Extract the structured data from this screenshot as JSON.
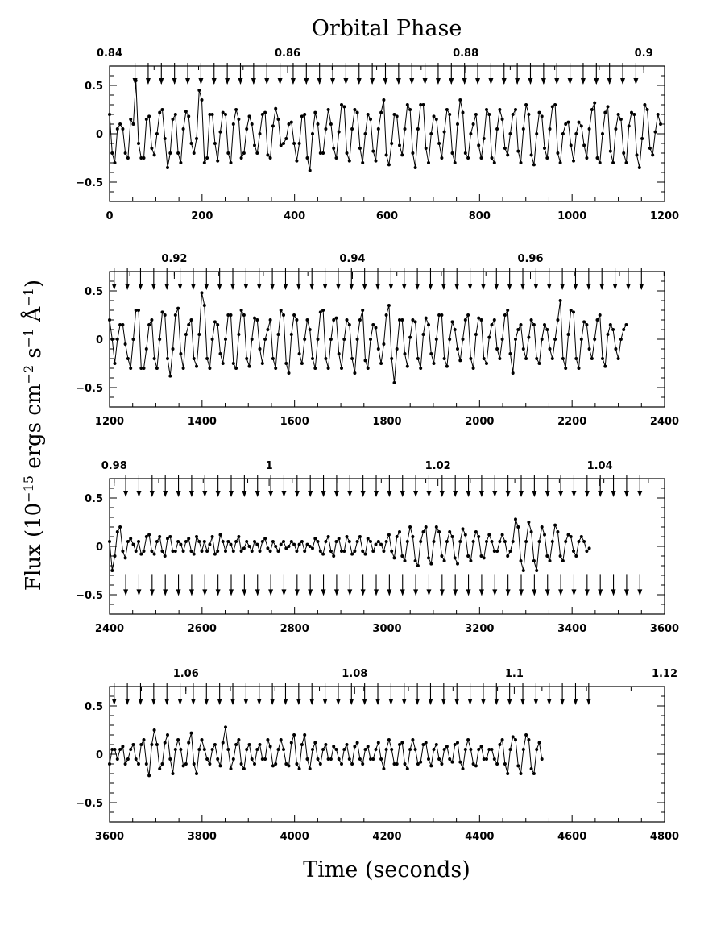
{
  "figure": {
    "title": "Orbital Phase",
    "xlabel": "Time (seconds)",
    "ylabel_parts": {
      "main": "Flux (10",
      "exp1": "−15",
      "mid1": " ergs cm",
      "exp2": "−2",
      "mid2": " s",
      "exp3": "−1",
      "mid3": " Å",
      "exp4": "−1",
      "end": ")"
    }
  },
  "chart_data": [
    {
      "type": "line",
      "panel": 1,
      "xlim": [
        0,
        1200
      ],
      "ylim": [
        -0.7,
        0.7
      ],
      "xticks": [
        0,
        200,
        400,
        600,
        800,
        1000,
        1200
      ],
      "yticks": [
        -0.5,
        0,
        0.5
      ],
      "ytick_labels": [
        "−0.5",
        "0",
        "0.5"
      ],
      "phase_ticks": [
        {
          "label": "0.84",
          "t": 0
        },
        {
          "label": "0.86",
          "t": 385
        },
        {
          "label": "0.88",
          "t": 770
        },
        {
          "label": "0.9",
          "t": 1155
        }
      ],
      "pulse_period": 28.5,
      "arrows_top": {
        "start": 55,
        "end": 1155,
        "y": 0.6
      },
      "arrows_bottom": null,
      "series": {
        "x_start": 0,
        "x_step": 5.7,
        "values": [
          0.2,
          -0.2,
          -0.3,
          0.05,
          0.1,
          0.05,
          -0.2,
          -0.25,
          0.15,
          0.1,
          0.55,
          -0.1,
          -0.25,
          -0.25,
          0.15,
          0.18,
          -0.15,
          -0.22,
          0.0,
          0.22,
          0.25,
          -0.05,
          -0.35,
          -0.2,
          0.15,
          0.2,
          -0.2,
          -0.3,
          0.05,
          0.23,
          0.18,
          -0.1,
          -0.2,
          -0.05,
          0.45,
          0.35,
          -0.3,
          -0.25,
          0.2,
          0.2,
          -0.1,
          -0.28,
          0.02,
          0.22,
          0.2,
          -0.2,
          -0.3,
          0.1,
          0.25,
          0.15,
          -0.25,
          -0.2,
          0.05,
          0.18,
          0.1,
          -0.12,
          -0.2,
          0.0,
          0.2,
          0.22,
          -0.22,
          -0.25,
          0.08,
          0.26,
          0.15,
          -0.12,
          -0.1,
          -0.05,
          0.1,
          0.12,
          -0.1,
          -0.28,
          -0.1,
          0.18,
          0.2,
          -0.25,
          -0.38,
          0.0,
          0.22,
          0.1,
          -0.2,
          -0.2,
          0.05,
          0.25,
          0.1,
          -0.15,
          -0.25,
          0.02,
          0.3,
          0.28,
          -0.2,
          -0.28,
          0.05,
          0.25,
          0.22,
          -0.15,
          -0.3,
          0.0,
          0.2,
          0.15,
          -0.18,
          -0.28,
          0.05,
          0.22,
          0.35,
          -0.22,
          -0.32,
          -0.1,
          0.2,
          0.18,
          -0.12,
          -0.22,
          0.05,
          0.3,
          0.25,
          -0.2,
          -0.35,
          0.05,
          0.3,
          0.3,
          -0.15,
          -0.3,
          0.0,
          0.18,
          0.15,
          -0.1,
          -0.25,
          0.02,
          0.25,
          0.2,
          -0.2,
          -0.3,
          0.1,
          0.35,
          0.22,
          -0.2,
          -0.25,
          0.0,
          0.1,
          0.2,
          -0.12,
          -0.25,
          -0.05,
          0.25,
          0.2,
          -0.25,
          -0.3,
          0.05,
          0.25,
          0.15,
          -0.15,
          -0.22,
          0.0,
          0.2,
          0.25,
          -0.18,
          -0.3,
          0.05,
          0.3,
          0.2,
          -0.22,
          -0.32,
          0.0,
          0.22,
          0.18,
          -0.15,
          -0.25,
          0.05,
          0.28,
          0.3,
          -0.2,
          -0.3,
          0.0,
          0.1,
          0.12,
          -0.12,
          -0.28,
          0.0,
          0.12,
          0.08,
          -0.12,
          -0.25,
          0.05,
          0.25,
          0.32,
          -0.25,
          -0.3,
          0.0,
          0.22,
          0.28,
          -0.18,
          -0.3,
          0.05,
          0.2,
          0.15,
          -0.2,
          -0.3,
          0.08,
          0.22,
          0.2,
          -0.22,
          -0.35,
          -0.05,
          0.3,
          0.25,
          -0.15,
          -0.22,
          0.02,
          0.2,
          0.1
        ]
      }
    },
    {
      "type": "line",
      "panel": 2,
      "xlim": [
        1200,
        2400
      ],
      "ylim": [
        -0.7,
        0.7
      ],
      "xticks": [
        1200,
        1400,
        1600,
        1800,
        2000,
        2200,
        2400
      ],
      "yticks": [
        -0.5,
        0,
        0.5
      ],
      "ytick_labels": [
        "−0.5",
        "0",
        "0.5"
      ],
      "phase_ticks": [
        {
          "label": "0.92",
          "t": 1340
        },
        {
          "label": "0.94",
          "t": 1725
        },
        {
          "label": "0.96",
          "t": 2110
        }
      ],
      "pulse_period": 28.5,
      "arrows_top": {
        "start": 1210,
        "end": 2355,
        "y": 0.6
      },
      "arrows_bottom": null,
      "series": {
        "x_start": 1200,
        "x_step": 5.7,
        "values": [
          0.2,
          0.0,
          -0.25,
          0.0,
          0.15,
          0.15,
          -0.05,
          -0.2,
          -0.3,
          0.0,
          0.3,
          0.3,
          -0.3,
          -0.3,
          -0.1,
          0.15,
          0.2,
          -0.2,
          -0.3,
          0.0,
          0.28,
          0.25,
          -0.2,
          -0.38,
          -0.1,
          0.25,
          0.32,
          -0.15,
          -0.3,
          0.05,
          0.15,
          0.2,
          -0.2,
          -0.28,
          0.05,
          0.48,
          0.35,
          -0.2,
          -0.3,
          0.0,
          0.18,
          0.15,
          -0.15,
          -0.25,
          0.0,
          0.25,
          0.25,
          -0.25,
          -0.3,
          0.05,
          0.3,
          0.25,
          -0.2,
          -0.28,
          0.0,
          0.22,
          0.2,
          -0.1,
          -0.25,
          0.0,
          0.1,
          0.2,
          -0.2,
          -0.3,
          0.05,
          0.3,
          0.25,
          -0.25,
          -0.35,
          0.05,
          0.25,
          0.2,
          -0.15,
          -0.25,
          0.0,
          0.2,
          0.1,
          -0.2,
          -0.3,
          0.0,
          0.28,
          0.3,
          -0.2,
          -0.3,
          0.0,
          0.2,
          0.22,
          -0.15,
          -0.3,
          0.0,
          0.2,
          0.15,
          -0.2,
          -0.35,
          0.0,
          0.2,
          0.3,
          -0.22,
          -0.3,
          0.0,
          0.15,
          0.12,
          -0.1,
          -0.25,
          -0.05,
          0.25,
          0.35,
          -0.2,
          -0.45,
          -0.1,
          0.2,
          0.2,
          -0.15,
          -0.28,
          0.02,
          0.2,
          0.18,
          -0.2,
          -0.3,
          0.05,
          0.22,
          0.15,
          -0.15,
          -0.25,
          0.0,
          0.25,
          0.25,
          -0.2,
          -0.28,
          0.0,
          0.18,
          0.1,
          -0.1,
          -0.22,
          0.0,
          0.2,
          0.25,
          -0.2,
          -0.3,
          0.05,
          0.22,
          0.2,
          -0.2,
          -0.25,
          0.02,
          0.15,
          0.2,
          -0.1,
          -0.2,
          0.0,
          0.25,
          0.3,
          -0.15,
          -0.35,
          0.0,
          0.1,
          0.15,
          -0.1,
          -0.2,
          0.02,
          0.2,
          0.15,
          -0.2,
          -0.25,
          0.0,
          0.15,
          0.1,
          -0.1,
          -0.2,
          0.0,
          0.2,
          0.4,
          -0.2,
          -0.3,
          0.05,
          0.3,
          0.28,
          -0.2,
          -0.3,
          0.0,
          0.18,
          0.15,
          -0.1,
          -0.2,
          0.0,
          0.2,
          0.25,
          -0.2,
          -0.28,
          0.05,
          0.15,
          0.1,
          -0.1,
          -0.2,
          0.0,
          0.1,
          0.15
        ]
      }
    },
    {
      "type": "line",
      "panel": 3,
      "xlim": [
        2400,
        3600
      ],
      "ylim": [
        -0.7,
        0.7
      ],
      "xticks": [
        2400,
        2600,
        2800,
        3000,
        3200,
        3400,
        3600
      ],
      "yticks": [
        -0.5,
        0,
        0.5
      ],
      "ytick_labels": [
        "−0.5",
        "0",
        "0.5"
      ],
      "phase_ticks": [
        {
          "label": "0.98",
          "t": 2410
        },
        {
          "label": "1",
          "t": 2745
        },
        {
          "label": "1.02",
          "t": 3110
        },
        {
          "label": "1.04",
          "t": 3460
        }
      ],
      "pulse_period": 28.5,
      "arrows_top": {
        "start": 2435,
        "end": 3550,
        "y": 0.6
      },
      "arrows_bottom": {
        "start": 2435,
        "end": 3550,
        "y": -0.42
      },
      "series": {
        "x_start": 2400,
        "x_step": 5.7,
        "values": [
          0.05,
          -0.25,
          -0.1,
          0.15,
          0.2,
          -0.05,
          -0.12,
          0.05,
          0.08,
          0.02,
          -0.05,
          0.05,
          -0.08,
          -0.05,
          0.1,
          0.12,
          -0.05,
          -0.08,
          0.05,
          0.1,
          -0.05,
          -0.1,
          0.08,
          0.1,
          -0.05,
          -0.05,
          0.05,
          0.02,
          -0.05,
          0.05,
          0.08,
          -0.05,
          -0.08,
          0.1,
          0.05,
          -0.05,
          0.05,
          -0.05,
          0.02,
          0.1,
          -0.08,
          -0.05,
          0.12,
          0.05,
          -0.05,
          0.05,
          0.02,
          -0.05,
          0.05,
          0.1,
          -0.05,
          -0.02,
          0.05,
          0.0,
          -0.05,
          0.05,
          0.02,
          -0.05,
          0.05,
          0.08,
          -0.02,
          -0.05,
          0.05,
          0.0,
          -0.05,
          0.02,
          0.05,
          -0.02,
          0.0,
          0.05,
          0.02,
          -0.05,
          0.02,
          0.05,
          -0.05,
          0.02,
          0.0,
          -0.02,
          0.08,
          0.05,
          -0.05,
          -0.08,
          0.05,
          0.1,
          -0.05,
          -0.1,
          0.05,
          0.08,
          -0.05,
          -0.05,
          0.1,
          0.05,
          -0.08,
          -0.05,
          0.05,
          0.1,
          -0.05,
          -0.08,
          0.08,
          0.05,
          -0.05,
          0.02,
          0.05,
          0.02,
          -0.05,
          0.05,
          0.12,
          -0.05,
          -0.12,
          0.1,
          0.15,
          -0.1,
          -0.15,
          0.05,
          0.2,
          0.1,
          -0.15,
          -0.2,
          0.05,
          0.15,
          0.2,
          -0.12,
          -0.18,
          0.05,
          0.2,
          0.15,
          -0.1,
          -0.15,
          0.05,
          0.15,
          0.1,
          -0.12,
          -0.18,
          0.05,
          0.18,
          0.12,
          -0.1,
          -0.15,
          0.05,
          0.15,
          0.1,
          -0.1,
          -0.12,
          0.05,
          0.12,
          0.05,
          -0.05,
          -0.05,
          0.05,
          0.12,
          0.05,
          -0.1,
          -0.05,
          0.05,
          0.28,
          0.2,
          -0.15,
          -0.25,
          0.05,
          0.25,
          0.15,
          -0.15,
          -0.25,
          0.05,
          0.2,
          0.12,
          -0.1,
          -0.15,
          0.05,
          0.22,
          0.15,
          -0.1,
          -0.15,
          0.05,
          0.12,
          0.1,
          -0.05,
          -0.1,
          0.05,
          0.1,
          0.05,
          -0.05,
          -0.02
        ]
      }
    },
    {
      "type": "line",
      "panel": 4,
      "xlim": [
        3600,
        4800
      ],
      "ylim": [
        -0.7,
        0.7
      ],
      "xticks": [
        3600,
        3800,
        4000,
        4200,
        4400,
        4600,
        4800
      ],
      "yticks": [
        -0.5,
        0,
        0.5
      ],
      "ytick_labels": [
        "−0.5",
        "0",
        "0.5"
      ],
      "phase_ticks": [
        {
          "label": "1.06",
          "t": 3765
        },
        {
          "label": "1.08",
          "t": 4130
        },
        {
          "label": "1.1",
          "t": 4475
        },
        {
          "label": "1.12",
          "t": 4800
        }
      ],
      "pulse_period": 28.5,
      "arrows_top": {
        "start": 3610,
        "end": 4655,
        "y": 0.6
      },
      "arrows_bottom": null,
      "series": {
        "x_start": 3600,
        "x_step": 5.7,
        "values": [
          -0.1,
          0.05,
          0.05,
          -0.05,
          0.05,
          0.08,
          -0.1,
          -0.05,
          0.05,
          0.1,
          -0.05,
          -0.1,
          0.1,
          0.15,
          -0.1,
          -0.22,
          0.1,
          0.25,
          0.1,
          -0.15,
          -0.1,
          0.12,
          0.2,
          -0.05,
          -0.2,
          0.05,
          0.15,
          0.05,
          -0.12,
          -0.1,
          0.12,
          0.22,
          -0.1,
          -0.2,
          0.05,
          0.15,
          0.05,
          -0.05,
          -0.1,
          0.05,
          0.1,
          -0.05,
          -0.12,
          0.12,
          0.28,
          0.05,
          -0.15,
          -0.05,
          0.1,
          0.15,
          -0.1,
          -0.15,
          0.05,
          0.1,
          -0.05,
          -0.1,
          0.05,
          0.1,
          -0.05,
          -0.05,
          0.15,
          0.08,
          -0.12,
          -0.1,
          0.05,
          0.15,
          0.05,
          -0.1,
          -0.12,
          0.12,
          0.2,
          -0.1,
          -0.15,
          0.1,
          0.2,
          -0.05,
          -0.15,
          0.05,
          0.12,
          -0.05,
          -0.1,
          0.05,
          0.1,
          -0.05,
          -0.05,
          0.08,
          0.05,
          -0.05,
          -0.1,
          0.05,
          0.1,
          -0.05,
          -0.1,
          0.08,
          0.12,
          -0.05,
          -0.1,
          0.05,
          0.08,
          -0.05,
          -0.05,
          0.05,
          0.12,
          -0.05,
          -0.15,
          0.05,
          0.15,
          0.05,
          -0.1,
          -0.1,
          0.1,
          0.12,
          -0.1,
          -0.15,
          0.05,
          0.15,
          0.05,
          -0.1,
          -0.08,
          0.1,
          0.12,
          -0.05,
          -0.12,
          0.05,
          0.1,
          -0.05,
          -0.1,
          0.05,
          0.08,
          -0.05,
          -0.08,
          0.1,
          0.12,
          -0.08,
          -0.15,
          0.05,
          0.15,
          0.05,
          -0.1,
          -0.12,
          0.05,
          0.08,
          -0.05,
          -0.05,
          0.05,
          0.05,
          -0.05,
          -0.1,
          0.1,
          0.15,
          -0.1,
          -0.2,
          0.05,
          0.18,
          0.15,
          -0.12,
          -0.2,
          0.05,
          0.2,
          0.15,
          -0.15,
          -0.2,
          0.05,
          0.12,
          -0.05
        ]
      }
    }
  ]
}
